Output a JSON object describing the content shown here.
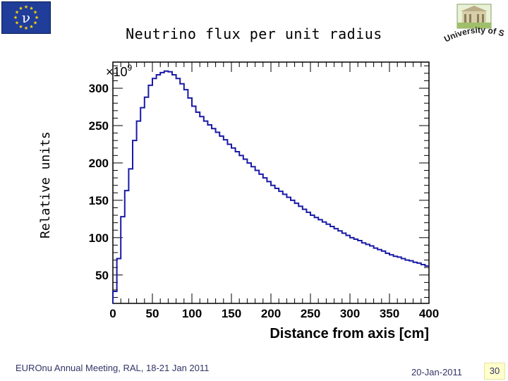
{
  "header": {
    "eu_logo_text": "ν",
    "university_logo_text": "University of Sofia"
  },
  "footer": {
    "event": "EUROnu Annual Meeting, RAL, 18-21 Jan 2011",
    "date": "20-Jan-2011",
    "page": "30"
  },
  "colors": {
    "line": "#1a1aa6",
    "eu_blue": "#1f3d99",
    "eu_stars": "#ffd700",
    "page_badge": "#ffffcc"
  },
  "chart_data": {
    "type": "line",
    "style": "step-histogram",
    "title": "Neutrino flux per unit radius",
    "xlabel": "Distance from axis [cm]",
    "ylabel": "Relative units",
    "y_multiplier_label": "×10",
    "y_multiplier_exponent": "9",
    "xlim": [
      0,
      400
    ],
    "ylim": [
      12,
      335
    ],
    "x_ticks": [
      0,
      50,
      100,
      150,
      200,
      250,
      300,
      350,
      400
    ],
    "y_ticks": [
      50,
      100,
      150,
      200,
      250,
      300
    ],
    "grid": false,
    "bin_width": 5,
    "series": [
      {
        "x": [
          0,
          5,
          10,
          15,
          20,
          25,
          30,
          35,
          40,
          45,
          50,
          55,
          60,
          65,
          70,
          75,
          80,
          85,
          90,
          95,
          100,
          105,
          110,
          115,
          120,
          125,
          130,
          135,
          140,
          145,
          150,
          155,
          160,
          165,
          170,
          175,
          180,
          185,
          190,
          195,
          200,
          205,
          210,
          215,
          220,
          225,
          230,
          235,
          240,
          245,
          250,
          255,
          260,
          265,
          270,
          275,
          280,
          285,
          290,
          295,
          300,
          305,
          310,
          315,
          320,
          325,
          330,
          335,
          340,
          345,
          350,
          355,
          360,
          365,
          370,
          375,
          380,
          385,
          390,
          395
        ],
        "values": [
          28,
          72,
          128,
          163,
          192,
          230,
          256,
          274,
          288,
          304,
          313,
          318,
          321,
          323,
          322,
          318,
          313,
          306,
          298,
          287,
          276,
          268,
          262,
          256,
          251,
          246,
          241,
          236,
          231,
          225,
          220,
          215,
          210,
          205,
          200,
          195,
          190,
          185,
          180,
          175,
          170,
          166,
          162,
          158,
          154,
          150,
          146,
          142,
          138,
          134,
          130,
          127,
          124,
          121,
          118,
          115,
          112,
          109,
          106,
          103,
          100,
          98,
          96,
          93,
          91,
          89,
          86,
          84,
          82,
          79,
          77,
          75,
          74,
          72,
          70,
          69,
          67,
          66,
          64,
          62
        ]
      }
    ]
  }
}
